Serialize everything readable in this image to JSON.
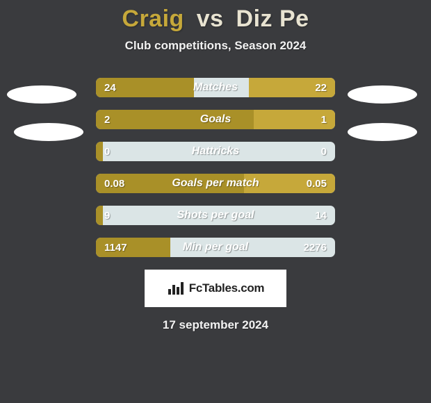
{
  "colors": {
    "background": "#3a3b3e",
    "player1_accent": "#c6a83a",
    "player2_accent": "#e8e3d1",
    "title_text": "#c6a83a",
    "body_text": "#f2f2f2",
    "bar_left": "#a99028",
    "bar_right": "#c6a83a",
    "bar_rest": "#dbe5e6",
    "value_text": "#ffffff",
    "label_text": "#ffffff",
    "logo_bg": "#ffffff",
    "logo_text": "#222222",
    "avatar_fill": "#ffffff"
  },
  "title": {
    "player1": "Craig",
    "vs": "vs",
    "player2": "Diz Pe"
  },
  "subtitle": "Club competitions, Season 2024",
  "stats": [
    {
      "label": "Matches",
      "left_val": "24",
      "right_val": "22",
      "left_pct": 41,
      "right_pct": 36
    },
    {
      "label": "Goals",
      "left_val": "2",
      "right_val": "1",
      "left_pct": 66,
      "right_pct": 34
    },
    {
      "label": "Hattricks",
      "left_val": "0",
      "right_val": "0",
      "left_pct": 3,
      "right_pct": 0
    },
    {
      "label": "Goals per match",
      "left_val": "0.08",
      "right_val": "0.05",
      "left_pct": 62,
      "right_pct": 38
    },
    {
      "label": "Shots per goal",
      "left_val": "9",
      "right_val": "14",
      "left_pct": 3,
      "right_pct": 0
    },
    {
      "label": "Min per goal",
      "left_val": "1147",
      "right_val": "2276",
      "left_pct": 31,
      "right_pct": 0
    }
  ],
  "logo_text": "FcTables.com",
  "date": "17 september 2024"
}
